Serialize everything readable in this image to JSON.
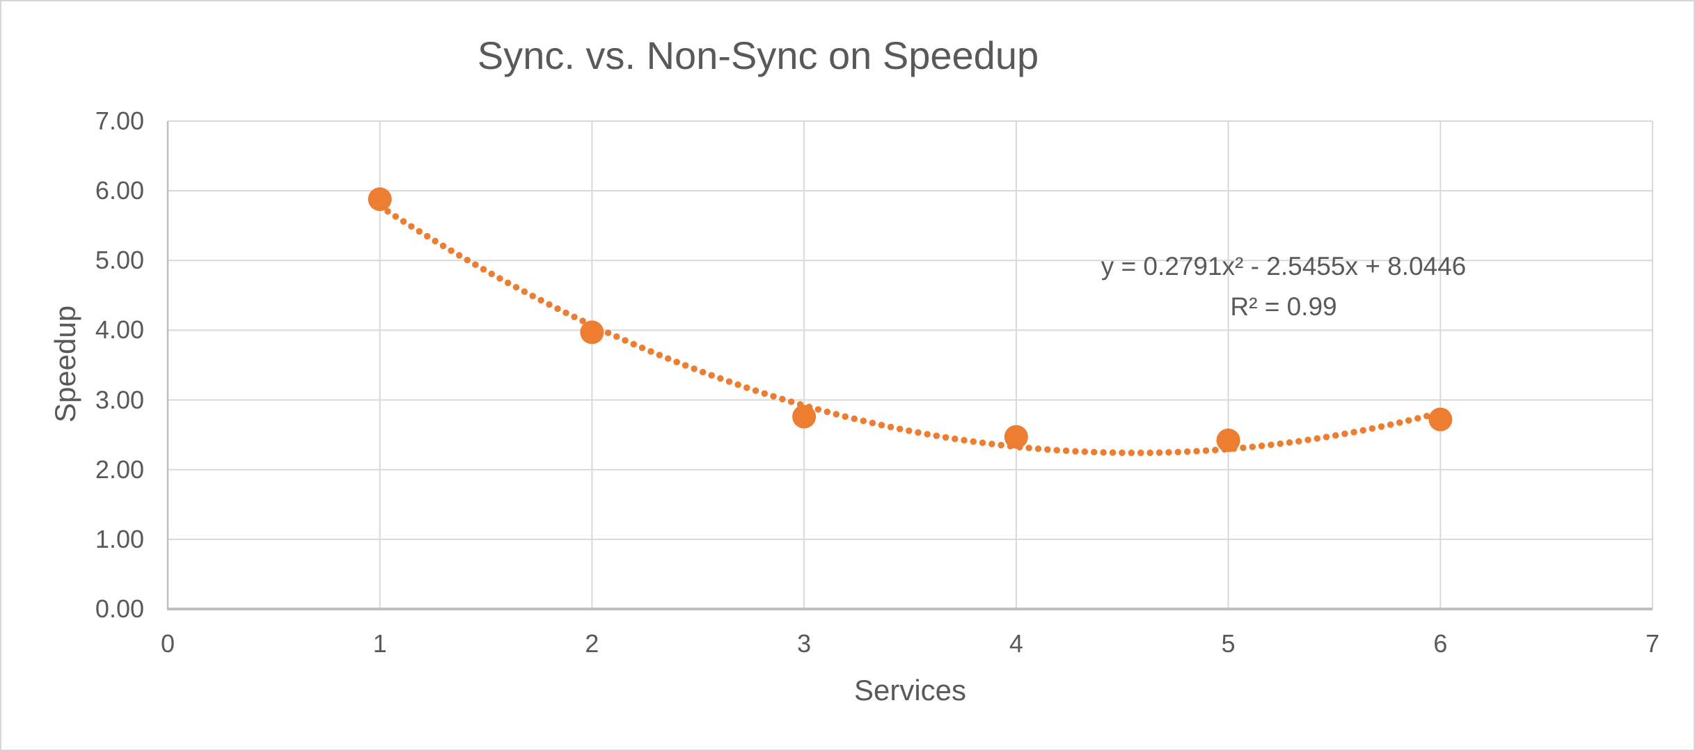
{
  "window": {
    "background": "#FFFFFF",
    "frame_border_color": "#D6D6D6"
  },
  "chart_data": {
    "type": "scatter",
    "title": "Sync. vs. Non-Sync on Speedup",
    "xlabel": "Services",
    "ylabel": "Speedup",
    "xlim": [
      0,
      7
    ],
    "ylim": [
      0,
      7
    ],
    "x_ticks": [
      "0",
      "1",
      "2",
      "3",
      "4",
      "5",
      "6",
      "7"
    ],
    "y_ticks": [
      "0.00",
      "1.00",
      "2.00",
      "3.00",
      "4.00",
      "5.00",
      "6.00",
      "7.00"
    ],
    "grid": true,
    "legend": "none",
    "series": [
      {
        "name": "Speedup",
        "marker": "circle",
        "marker_color": "#ED7D31",
        "points": [
          [
            1,
            5.88
          ],
          [
            2,
            3.97
          ],
          [
            3,
            2.76
          ],
          [
            4,
            2.47
          ],
          [
            5,
            2.42
          ],
          [
            6,
            2.72
          ]
        ]
      }
    ],
    "trendline": {
      "type": "polynomial",
      "order": 2,
      "a": 0.2791,
      "b": -2.5455,
      "c": 8.0446,
      "x_start": 1,
      "x_end": 6,
      "style": "dotted",
      "color": "#ED7D31",
      "equation": "y = 0.2791x² - 2.5455x + 8.0446",
      "r_squared": "R² = 0.99"
    },
    "colors": {
      "text": "#595959",
      "gridline": "#D9D9D9",
      "axis_line": "#BFBFBF",
      "series": "#ED7D31"
    }
  }
}
